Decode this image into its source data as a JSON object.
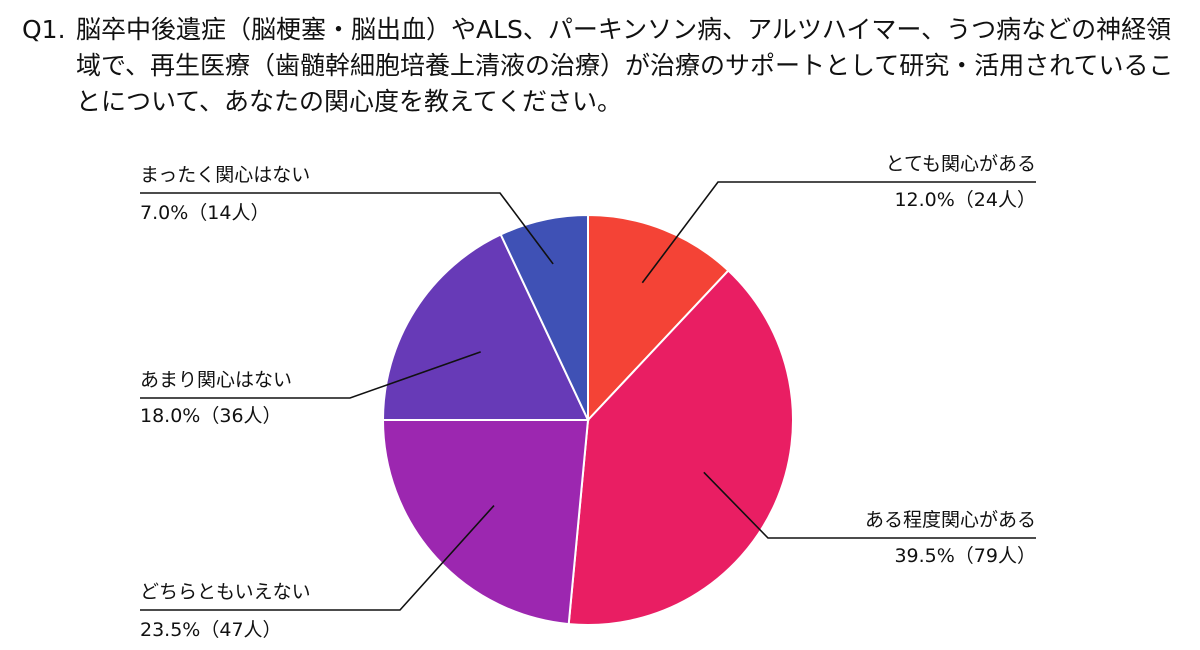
{
  "question": {
    "number": "Q1.",
    "text": "脳卒中後遺症（脳梗塞・脳出血）やALS、パーキンソン病、アルツハイマー、うつ病などの神経領域で、再生医療（歯髄幹細胞培養上清液の治療）が治療のサポートとして研究・活用されていることについて、あなたの関心度を教えてください。"
  },
  "chart_data": {
    "type": "pie",
    "title": "",
    "start": "top",
    "direction": "clockwise",
    "slices": [
      {
        "label": "とても関心がある",
        "value": 12.0,
        "count_label": "12.0%（24人）",
        "color": "#F44336"
      },
      {
        "label": "ある程度関心がある",
        "value": 39.5,
        "count_label": "39.5%（79人）",
        "color": "#E91E63"
      },
      {
        "label": "どちらともいえない",
        "value": 23.5,
        "count_label": "23.5%（47人）",
        "color": "#9C27B0"
      },
      {
        "label": "あまり関心はない",
        "value": 18.0,
        "count_label": "18.0%（36人）",
        "color": "#673AB7"
      },
      {
        "label": "まったく関心はない",
        "value": 7.0,
        "count_label": "7.0%（14人）",
        "color": "#3F51B5"
      }
    ]
  }
}
